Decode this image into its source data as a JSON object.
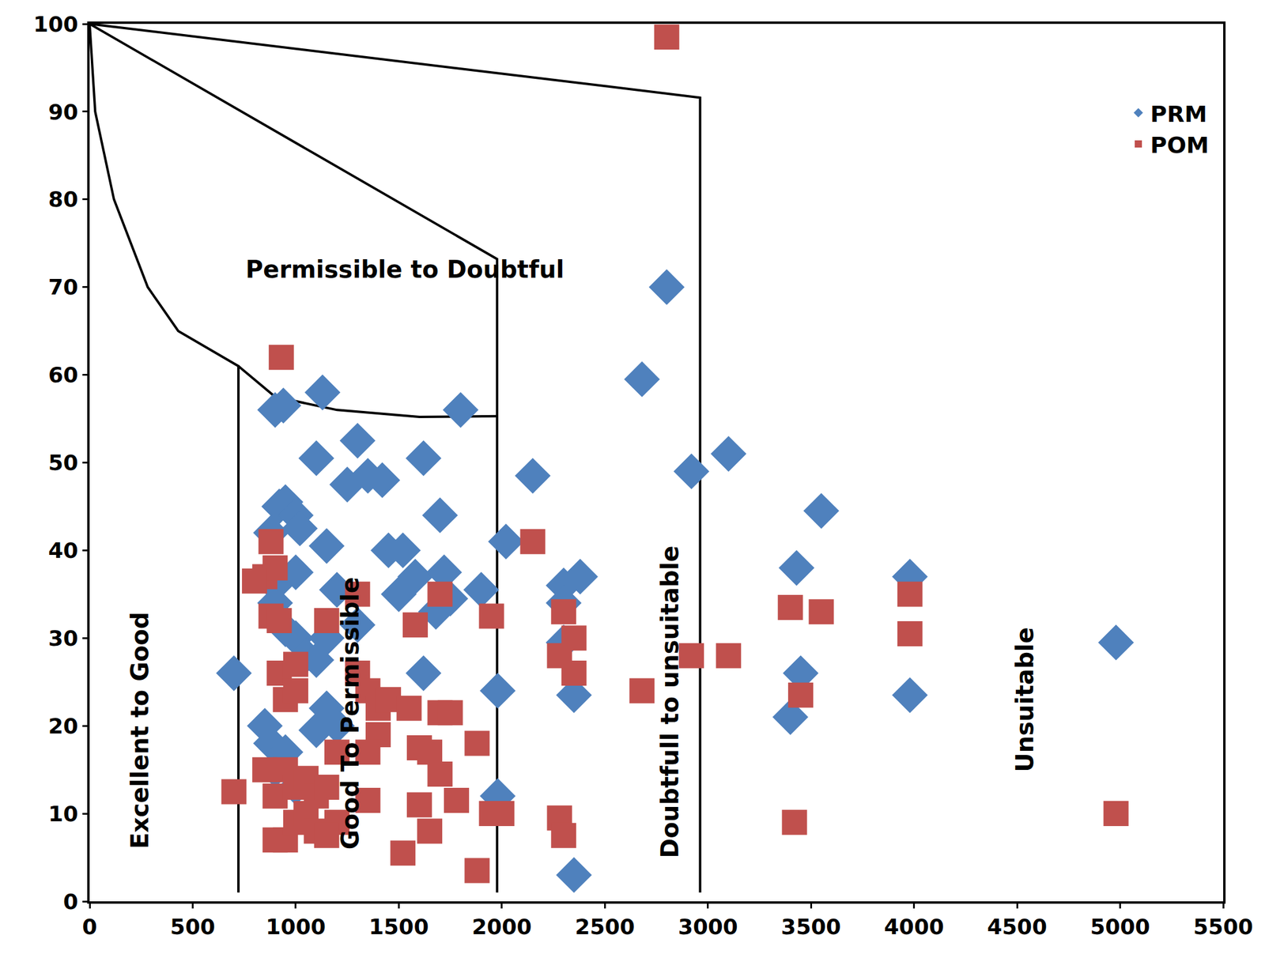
{
  "chart_data": {
    "type": "scatter",
    "xlim": [
      0,
      5500
    ],
    "xticks": [
      0,
      500,
      1000,
      1500,
      2000,
      2500,
      3000,
      3500,
      4000,
      4500,
      5000,
      5500
    ],
    "ylim": [
      0,
      100
    ],
    "yticks": [
      0,
      10,
      20,
      30,
      40,
      50,
      60,
      70,
      80,
      90,
      100
    ],
    "grid": false,
    "legend": "upper right",
    "series": [
      {
        "name": "PRM",
        "color": "#4F81BD",
        "marker": "diamond",
        "x": [
          700,
          850,
          880,
          900,
          940,
          920,
          950,
          1000,
          900,
          1000,
          1020,
          950,
          1000,
          1050,
          1100,
          1150,
          1100,
          1150,
          1200,
          880,
          900,
          1130,
          1100,
          1150,
          1200,
          1250,
          1300,
          1350,
          1420,
          1300,
          1450,
          1520,
          1500,
          1580,
          1620,
          1620,
          1700,
          1720,
          1680,
          1750,
          1800,
          1900,
          1980,
          1980,
          2020,
          2150,
          2300,
          2300,
          2380,
          2300,
          2350,
          2350,
          2680,
          2800,
          2920,
          3100,
          3430,
          3550,
          3400,
          3450,
          3980,
          3980,
          4980,
          900,
          950,
          1000
        ],
        "values": [
          26,
          20,
          18,
          56,
          56.5,
          45,
          45.5,
          37.5,
          36,
          44,
          42.5,
          31,
          30,
          28,
          27.5,
          30,
          19.5,
          22,
          20,
          42,
          34,
          58,
          50.5,
          40.5,
          35.5,
          47.5,
          52.5,
          48.5,
          48,
          31.5,
          40,
          40,
          35,
          37,
          50.5,
          26,
          44,
          37.5,
          33,
          34.5,
          56,
          35.5,
          24,
          12,
          41,
          48.5,
          36,
          34,
          37,
          29.5,
          23.5,
          3,
          59.5,
          70,
          49,
          51,
          38,
          44.5,
          21,
          26,
          37,
          23.5,
          29.5,
          15,
          17,
          13
        ]
      },
      {
        "name": "POM",
        "color": "#C0504D",
        "marker": "square",
        "x": [
          930,
          2800,
          880,
          850,
          900,
          800,
          880,
          920,
          1150,
          920,
          1000,
          950,
          1000,
          1300,
          1300,
          1350,
          1400,
          1450,
          1550,
          1400,
          1350,
          1200,
          1580,
          1700,
          1700,
          1750,
          1600,
          1650,
          1700,
          1880,
          1780,
          1950,
          2150,
          1950,
          2000,
          1880,
          1520,
          1600,
          1650,
          1350,
          700,
          850,
          900,
          950,
          1000,
          1050,
          1100,
          1150,
          1200,
          900,
          950,
          1000,
          1050,
          1100,
          1150,
          2300,
          2350,
          2350,
          2280,
          2280,
          2300,
          2680,
          2920,
          3100,
          3400,
          3550,
          3420,
          3450,
          3980,
          3980,
          4980
        ],
        "values": [
          62,
          98.5,
          41,
          37,
          38,
          36.5,
          32.5,
          32,
          32,
          26,
          27,
          23,
          24,
          35,
          26,
          24,
          22,
          23,
          22,
          19,
          17,
          17,
          31.5,
          35,
          21.5,
          21.5,
          17.5,
          17,
          14.5,
          18,
          11.5,
          32.5,
          41,
          10,
          10,
          3.5,
          5.5,
          11,
          8,
          11.5,
          12.5,
          15,
          12,
          15,
          13,
          14,
          12,
          13,
          9,
          7,
          7,
          9,
          10,
          8,
          7.5,
          33,
          30,
          26,
          28,
          9.5,
          7.5,
          24,
          28,
          28,
          33.5,
          33,
          9,
          23.5,
          35,
          30.5,
          10
        ]
      }
    ],
    "boundaries": [
      {
        "x": [
          0,
          2962,
          2962
        ],
        "y": [
          100,
          91.6,
          1
        ]
      },
      {
        "x": [
          0,
          1977,
          1977
        ],
        "y": [
          100,
          73.2,
          1
        ]
      },
      {
        "x": [
          0,
          27,
          118,
          282,
          430,
          722,
          722
        ],
        "y": [
          100,
          90,
          80,
          70,
          65,
          61,
          1
        ]
      },
      {
        "x": [
          722,
          900,
          1200,
          1600,
          1977
        ],
        "y": [
          61,
          57.5,
          56,
          55.2,
          55.3
        ]
      }
    ],
    "annotations": [
      {
        "text": "Permissible to Doubtful",
        "x": 1530,
        "y": 72
      },
      {
        "text": "Excellent to Good",
        "x": 243,
        "y": 19.5
      },
      {
        "text": "Good To Permissible",
        "x": 1263,
        "y": 21.4
      },
      {
        "text": "Doubtfull to unsuitable",
        "x": 2813,
        "y": 22.7
      },
      {
        "text": "Unsuitable",
        "x": 4539,
        "y": 23
      }
    ]
  }
}
